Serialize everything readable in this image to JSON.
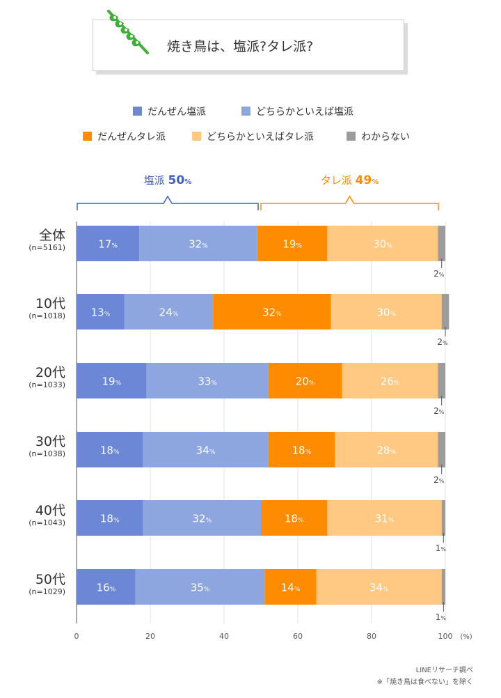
{
  "title": "焼き鳥は、塩派?タレ派?",
  "legend": {
    "items": [
      {
        "label": "だんぜん塩派",
        "color": "#6b87d6"
      },
      {
        "label": "どちらかといえば塩派",
        "color": "#8ea6e0"
      },
      {
        "label": "だんぜんタレ派",
        "color": "#ff8c00"
      },
      {
        "label": "どちらかといえばタレ派",
        "color": "#ffc983"
      },
      {
        "label": "わからない",
        "color": "#9c9c9c"
      }
    ]
  },
  "groups": {
    "shio": {
      "label": "塩派",
      "value": "50",
      "unit": "%",
      "color": "#3d5fbf"
    },
    "tare": {
      "label": "タレ派",
      "value": "49",
      "unit": "%",
      "color": "#ff8c00"
    }
  },
  "chart_data": {
    "type": "bar",
    "orientation": "horizontal",
    "stacked": true,
    "title": "焼き鳥は、塩派?タレ派?",
    "categories": [
      {
        "label": "全体",
        "n": "(n=5161)"
      },
      {
        "label": "10代",
        "n": "(n=1018)"
      },
      {
        "label": "20代",
        "n": "(n=1033)"
      },
      {
        "label": "30代",
        "n": "(n=1038)"
      },
      {
        "label": "40代",
        "n": "(n=1043)"
      },
      {
        "label": "50代",
        "n": "(n=1029)"
      }
    ],
    "series": [
      {
        "name": "だんぜん塩派",
        "color": "#6b87d6",
        "values": [
          17,
          13,
          19,
          18,
          18,
          16
        ]
      },
      {
        "name": "どちらかといえば塩派",
        "color": "#8ea6e0",
        "values": [
          32,
          24,
          33,
          34,
          32,
          35
        ]
      },
      {
        "name": "だんぜんタレ派",
        "color": "#ff8c00",
        "values": [
          19,
          32,
          20,
          18,
          18,
          14
        ]
      },
      {
        "name": "どちらかといえばタレ派",
        "color": "#ffc983",
        "values": [
          30,
          30,
          26,
          28,
          31,
          34
        ]
      },
      {
        "name": "わからない",
        "color": "#9c9c9c",
        "values": [
          2,
          2,
          2,
          2,
          1,
          1
        ]
      }
    ],
    "value_unit": "%",
    "x_ticks": [
      0,
      20,
      40,
      60,
      80,
      100
    ],
    "x_unit": "(%)",
    "xlim": [
      0,
      100
    ]
  },
  "footer": {
    "source": "LINEリサーチ調べ",
    "note": "※「焼き鳥は食べない」を除く"
  }
}
